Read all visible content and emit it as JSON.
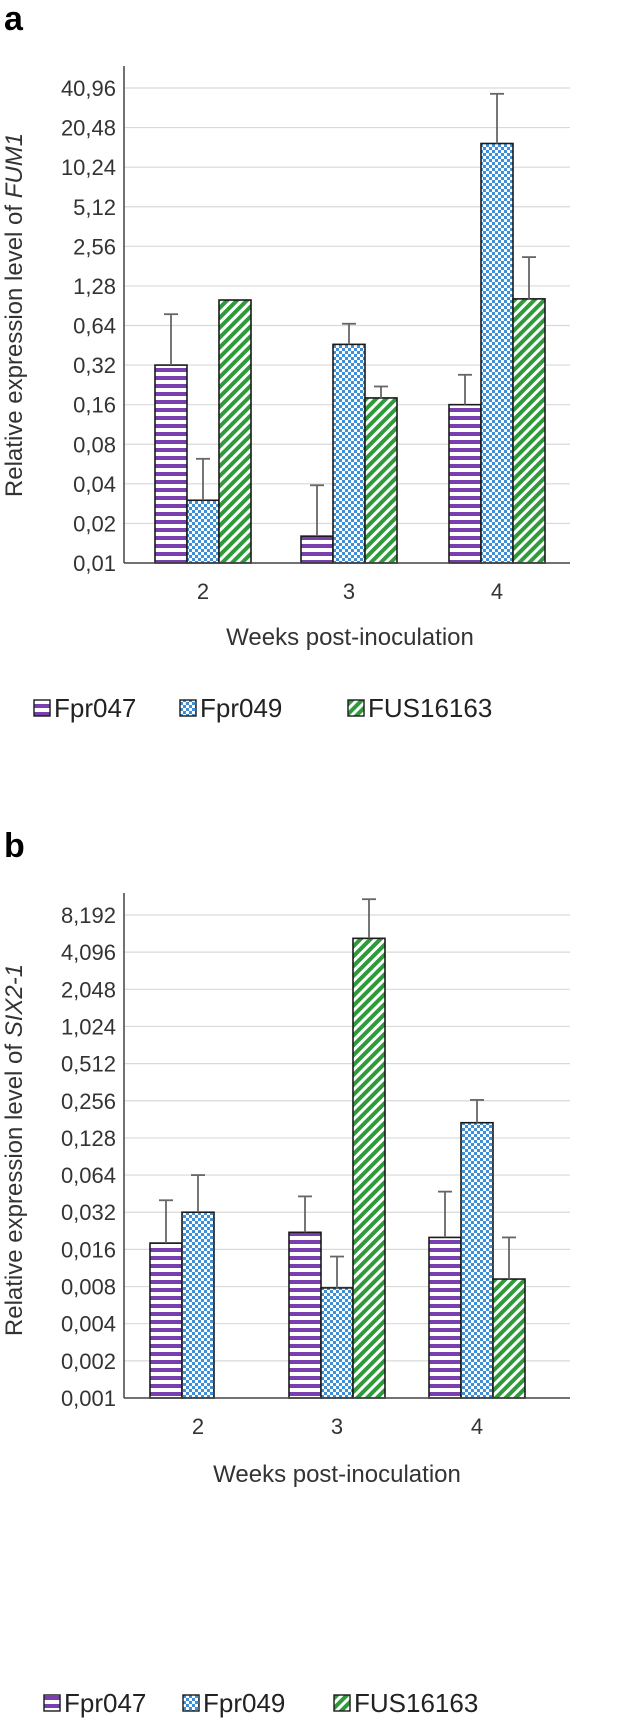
{
  "colors": {
    "fpr047": "#7a3fae",
    "fpr049": "#3f8fd8",
    "fus16163": "#2f9a3a",
    "grid": "#d9d9d9",
    "axis": "#444444",
    "error": "#666666"
  },
  "chart_data": [
    {
      "panel": "a",
      "type": "bar",
      "scale": "log2",
      "title": "",
      "xlabel": "Weeks post-inoculation",
      "ylabel_prefix": "Relative expression level of ",
      "ylabel_gene": "FUM1",
      "categories": [
        "2",
        "3",
        "4"
      ],
      "ylim": [
        0.01,
        51.2
      ],
      "yticks": [
        0.01,
        0.02,
        0.04,
        0.08,
        0.16,
        0.32,
        0.64,
        1.28,
        2.56,
        5.12,
        10.24,
        20.48,
        40.96
      ],
      "ytick_labels": [
        "0,01",
        "0,02",
        "0,04",
        "0,08",
        "0,16",
        "0,32",
        "0,64",
        "1,28",
        "2,56",
        "5,12",
        "10,24",
        "20,48",
        "40,96"
      ],
      "series": [
        {
          "name": "Fpr047",
          "values": [
            0.32,
            0.016,
            0.16
          ],
          "errors_upper": [
            0.78,
            0.039,
            0.27
          ]
        },
        {
          "name": "Fpr049",
          "values": [
            0.03,
            0.46,
            15.5
          ],
          "errors_upper": [
            0.062,
            0.66,
            37.0
          ]
        },
        {
          "name": "FUS16163",
          "values": [
            1.0,
            0.18,
            1.02
          ],
          "errors_upper": null
        }
      ],
      "errors_upper_by_series": [
        [
          0.78,
          0.039,
          0.27
        ],
        [
          0.062,
          0.66,
          37.0
        ],
        [
          null,
          0.22,
          2.12
        ]
      ],
      "legend": [
        "Fpr047",
        "Fpr049",
        "FUS16163"
      ],
      "legend_position": "bottom"
    },
    {
      "panel": "b",
      "type": "bar",
      "scale": "log2",
      "title": "",
      "xlabel": "Weeks post-inoculation",
      "ylabel_prefix": "Relative expression level of ",
      "ylabel_gene": "SIX2-1",
      "categories": [
        "2",
        "3",
        "4"
      ],
      "ylim": [
        0.001,
        12.0
      ],
      "yticks": [
        0.001,
        0.002,
        0.004,
        0.008,
        0.016,
        0.032,
        0.064,
        0.128,
        0.256,
        0.512,
        1.024,
        2.048,
        4.096,
        8.192
      ],
      "ytick_labels": [
        "0,001",
        "0,002",
        "0,004",
        "0,008",
        "0,016",
        "0,032",
        "0,064",
        "0,128",
        "0,256",
        "0,512",
        "1,024",
        "2,048",
        "4,096",
        "8,192"
      ],
      "series": [
        {
          "name": "Fpr047",
          "values": [
            0.018,
            0.022,
            0.02
          ]
        },
        {
          "name": "Fpr049",
          "values": [
            0.032,
            0.0078,
            0.17
          ]
        },
        {
          "name": "FUS16163",
          "values": [
            null,
            5.3,
            0.0092
          ]
        }
      ],
      "errors_upper_by_series": [
        [
          0.04,
          0.043,
          0.047
        ],
        [
          0.064,
          0.014,
          0.26
        ],
        [
          null,
          11.0,
          0.02
        ]
      ],
      "legend": [
        "Fpr047",
        "Fpr049",
        "FUS16163"
      ],
      "legend_position": "bottom"
    }
  ]
}
